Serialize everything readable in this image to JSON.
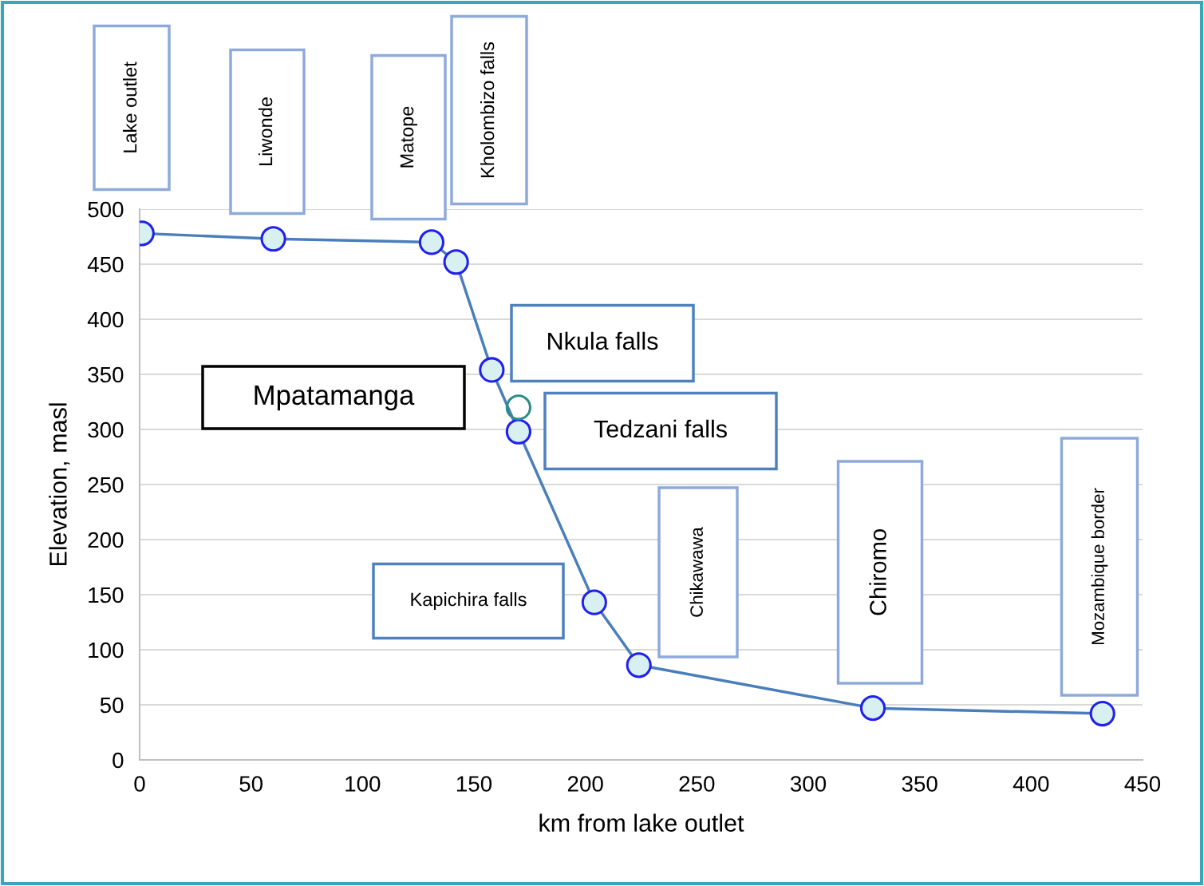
{
  "chart_data": {
    "type": "line",
    "xlabel": "km from lake outlet",
    "ylabel": "Elevation, masl",
    "series": [
      {
        "color": "#4a7ebb",
        "marker": "circle",
        "x": [
          1,
          60,
          131,
          142,
          158,
          170,
          204,
          224,
          329,
          432
        ],
        "values": [
          478,
          473,
          470,
          452,
          354,
          298,
          143,
          86,
          47,
          42
        ]
      },
      {
        "type": "scatter",
        "color": "#2e8b87",
        "marker": "circle",
        "x": [
          170
        ],
        "values": [
          320
        ]
      }
    ],
    "annotations": [
      "Lake outlet",
      "Liwonde",
      "Matope",
      "Kholombizo falls",
      "Nkula falls",
      "Mpatamanga",
      "Tedzani falls",
      "Kapichira falls",
      "Chikawawa",
      "Chiromo",
      "Mozambique border"
    ],
    "xlim": [
      0,
      450
    ],
    "xticks": [
      0,
      50,
      100,
      150,
      200,
      250,
      300,
      350,
      400,
      450
    ],
    "ylim": [
      0,
      500
    ],
    "yticks": [
      0,
      50,
      100,
      150,
      200,
      250,
      300,
      350,
      400,
      450,
      500
    ],
    "grid": "y",
    "legend": false
  }
}
